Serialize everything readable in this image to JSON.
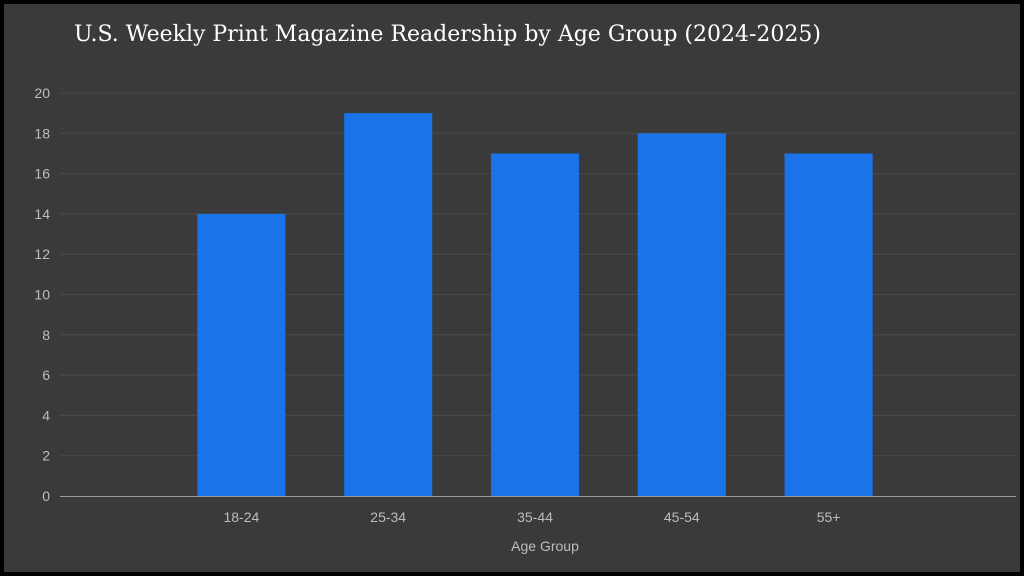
{
  "chart_data": {
    "type": "bar",
    "title": "U.S. Weekly Print Magazine Readership by Age Group (2024-2025)",
    "xlabel": "Age Group",
    "ylabel": "",
    "categories": [
      "18-24",
      "25-34",
      "35-44",
      "45-54",
      "55+"
    ],
    "values": [
      14,
      19,
      17,
      18,
      17
    ],
    "ylim": [
      0,
      20
    ],
    "yticks": [
      "0",
      "2",
      "4",
      "6",
      "8",
      "10",
      "12",
      "14",
      "16",
      "18",
      "20"
    ],
    "grid": true,
    "legend": "none",
    "colors": {
      "bar": "#1a73e8",
      "background": "#3a3a3a",
      "grid": "#4a4a4a",
      "axis": "#9a9a9a",
      "text": "#bdbdbd",
      "title": "#ffffff"
    }
  }
}
